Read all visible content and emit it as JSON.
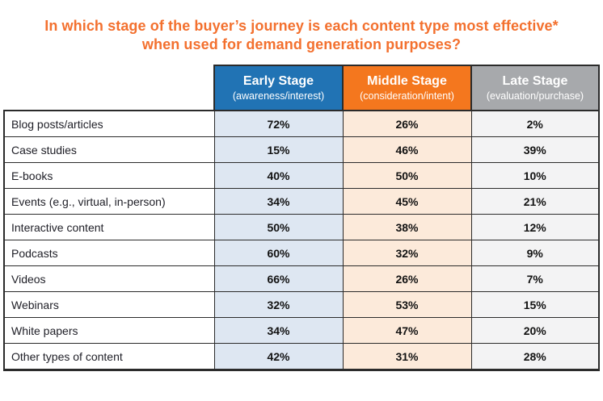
{
  "title": "In which stage of the buyer’s journey is each content type most effective* when used for demand generation purposes?",
  "colors": {
    "title_orange": "#F3702E",
    "header_blue": "#2173B4",
    "header_orange": "#F4771E",
    "header_gray": "#A7A9AC",
    "cell_blue": "#DEE7F2",
    "cell_peach": "#FCEADA",
    "cell_gray": "#F3F3F4"
  },
  "table": {
    "columns": [
      {
        "label": "Early Stage",
        "sublabel": "(awareness/interest)"
      },
      {
        "label": "Middle Stage",
        "sublabel": "(consideration/intent)"
      },
      {
        "label": "Late Stage",
        "sublabel": "(evaluation/purchase)"
      }
    ],
    "rows": [
      {
        "label": "Blog posts/articles",
        "values": [
          "72%",
          "26%",
          "2%"
        ]
      },
      {
        "label": "Case studies",
        "values": [
          "15%",
          "46%",
          "39%"
        ]
      },
      {
        "label": "E-books",
        "values": [
          "40%",
          "50%",
          "10%"
        ]
      },
      {
        "label": "Events (e.g., virtual, in-person)",
        "values": [
          "34%",
          "45%",
          "21%"
        ]
      },
      {
        "label": "Interactive content",
        "values": [
          "50%",
          "38%",
          "12%"
        ]
      },
      {
        "label": "Podcasts",
        "values": [
          "60%",
          "32%",
          "9%"
        ]
      },
      {
        "label": "Videos",
        "values": [
          "66%",
          "26%",
          "7%"
        ]
      },
      {
        "label": "Webinars",
        "values": [
          "32%",
          "53%",
          "15%"
        ]
      },
      {
        "label": "White papers",
        "values": [
          "34%",
          "47%",
          "20%"
        ]
      },
      {
        "label": "Other types of content",
        "values": [
          "42%",
          "31%",
          "28%"
        ]
      }
    ]
  },
  "chart_data": {
    "type": "table",
    "title": "In which stage of the buyer’s journey is each content type most effective* when used for demand generation purposes?",
    "unit": "%",
    "categories": [
      "Blog posts/articles",
      "Case studies",
      "E-books",
      "Events (e.g., virtual, in-person)",
      "Interactive content",
      "Podcasts",
      "Videos",
      "Webinars",
      "White papers",
      "Other types of content"
    ],
    "series": [
      {
        "name": "Early Stage (awareness/interest)",
        "values": [
          72,
          15,
          40,
          34,
          50,
          60,
          66,
          32,
          34,
          42
        ]
      },
      {
        "name": "Middle Stage (consideration/intent)",
        "values": [
          26,
          46,
          50,
          45,
          38,
          32,
          26,
          53,
          47,
          31
        ]
      },
      {
        "name": "Late Stage (evaluation/purchase)",
        "values": [
          2,
          39,
          10,
          21,
          12,
          9,
          7,
          15,
          20,
          28
        ]
      }
    ]
  }
}
